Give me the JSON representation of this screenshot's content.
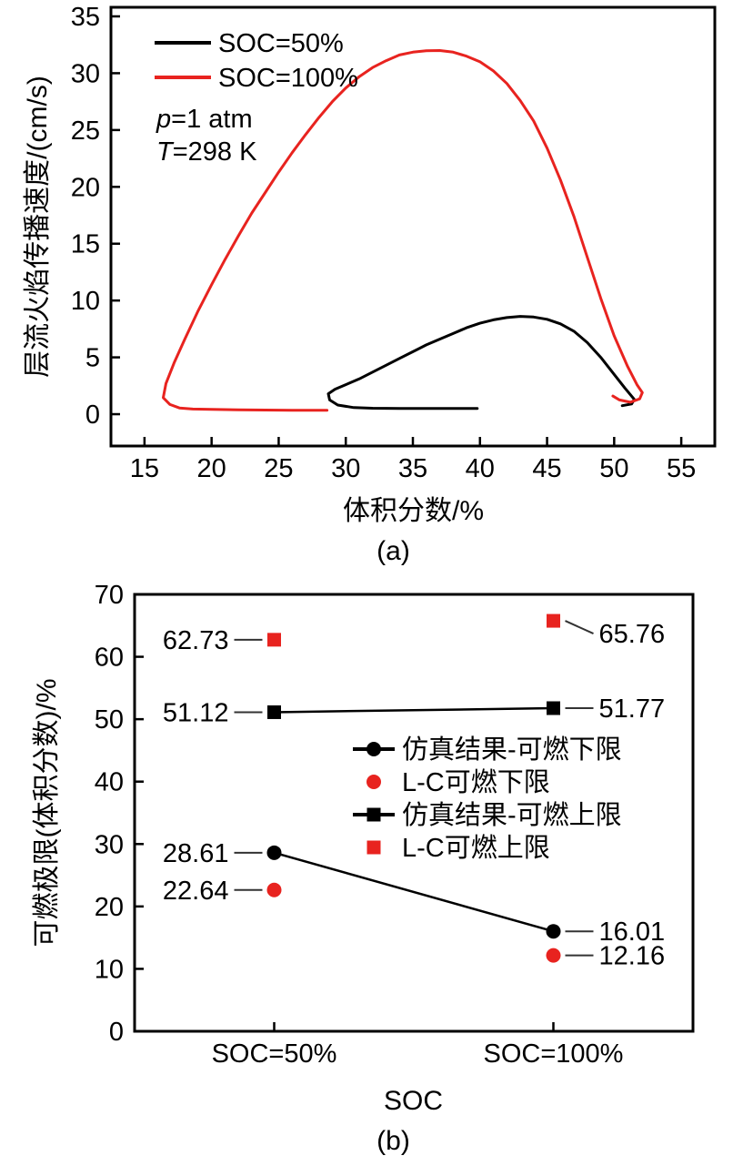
{
  "page": {
    "background": "#ffffff",
    "accent_red": "#e8231f",
    "accent_black": "#000000"
  },
  "chart_data": [
    {
      "id": "a",
      "type": "line",
      "title": "",
      "xlabel": "体积分数/%",
      "ylabel": "层流火焰传播速度/(cm/s)",
      "sublabel": "(a)",
      "xlim": [
        12.5,
        57.5
      ],
      "ylim": [
        -2.8,
        35.8
      ],
      "xticks": [
        15,
        20,
        25,
        30,
        35,
        40,
        45,
        50,
        55
      ],
      "yticks": [
        0,
        5,
        10,
        15,
        20,
        25,
        30,
        35
      ],
      "grid": false,
      "legend_position": "top-left",
      "legend": [
        {
          "label": "SOC=50%",
          "color": "#000000",
          "type": "line"
        },
        {
          "label": "SOC=100%",
          "color": "#e8231f",
          "type": "line"
        }
      ],
      "conditions": [
        {
          "italic": "p",
          "rest": "=1 atm"
        },
        {
          "italic": "T",
          "rest": "=298 K"
        }
      ],
      "series": [
        {
          "name": "SOC=50%",
          "color": "#000000",
          "points": [
            [
              39.8,
              0.5
            ],
            [
              38,
              0.5
            ],
            [
              36,
              0.5
            ],
            [
              34,
              0.5
            ],
            [
              32,
              0.52
            ],
            [
              30.6,
              0.58
            ],
            [
              29.4,
              0.8
            ],
            [
              28.8,
              1.25
            ],
            [
              28.7,
              1.8
            ],
            [
              29.2,
              2.2
            ],
            [
              30,
              2.6
            ],
            [
              31,
              3.1
            ],
            [
              32,
              3.7
            ],
            [
              33,
              4.3
            ],
            [
              34,
              4.9
            ],
            [
              35,
              5.5
            ],
            [
              36,
              6.1
            ],
            [
              37,
              6.6
            ],
            [
              38,
              7.1
            ],
            [
              39,
              7.6
            ],
            [
              40,
              8.0
            ],
            [
              41,
              8.3
            ],
            [
              42,
              8.5
            ],
            [
              43,
              8.6
            ],
            [
              44,
              8.55
            ],
            [
              45,
              8.35
            ],
            [
              46,
              7.95
            ],
            [
              47,
              7.3
            ],
            [
              48,
              6.3
            ],
            [
              49,
              5.0
            ],
            [
              50,
              3.5
            ],
            [
              50.8,
              2.3
            ],
            [
              51.5,
              1.3
            ],
            [
              51.3,
              0.9
            ],
            [
              50.6,
              0.75
            ]
          ]
        },
        {
          "name": "SOC=100%",
          "color": "#e8231f",
          "points": [
            [
              28.6,
              0.35
            ],
            [
              26,
              0.35
            ],
            [
              24,
              0.36
            ],
            [
              22,
              0.38
            ],
            [
              20,
              0.42
            ],
            [
              18.6,
              0.45
            ],
            [
              17.6,
              0.55
            ],
            [
              16.9,
              0.85
            ],
            [
              16.4,
              1.45
            ],
            [
              16.6,
              2.7
            ],
            [
              17.2,
              4.5
            ],
            [
              18,
              6.6
            ],
            [
              19,
              9.1
            ],
            [
              20,
              11.4
            ],
            [
              21,
              13.6
            ],
            [
              22,
              15.7
            ],
            [
              23,
              17.7
            ],
            [
              24,
              19.5
            ],
            [
              25,
              21.3
            ],
            [
              26,
              23.0
            ],
            [
              27,
              24.6
            ],
            [
              28,
              26.1
            ],
            [
              29,
              27.5
            ],
            [
              30,
              28.7
            ],
            [
              31,
              29.7
            ],
            [
              32,
              30.5
            ],
            [
              33,
              31.1
            ],
            [
              34,
              31.6
            ],
            [
              35,
              31.85
            ],
            [
              36,
              31.97
            ],
            [
              37,
              32.0
            ],
            [
              38,
              31.85
            ],
            [
              39,
              31.5
            ],
            [
              40,
              31.0
            ],
            [
              41,
              30.2
            ],
            [
              42,
              29.1
            ],
            [
              43,
              27.6
            ],
            [
              44,
              25.8
            ],
            [
              45,
              23.4
            ],
            [
              46,
              20.6
            ],
            [
              47,
              17.4
            ],
            [
              48,
              13.8
            ],
            [
              49,
              10.2
            ],
            [
              50,
              6.9
            ],
            [
              51,
              4.2
            ],
            [
              51.7,
              2.6
            ],
            [
              52.1,
              1.9
            ],
            [
              51.9,
              1.35
            ],
            [
              51.2,
              1.05
            ],
            [
              50.4,
              1.25
            ],
            [
              49.9,
              1.6
            ]
          ]
        }
      ]
    },
    {
      "id": "b",
      "type": "scatter",
      "title": "",
      "xlabel": "SOC",
      "ylabel": "可燃极限(体积分数)/%",
      "sublabel": "(b)",
      "categories": [
        "SOC=50%",
        "SOC=100%"
      ],
      "ylim": [
        0,
        70
      ],
      "yticks": [
        0,
        10,
        20,
        30,
        40,
        50,
        60,
        70
      ],
      "grid": false,
      "legend_position": "center",
      "series": [
        {
          "name": "仿真结果-可燃下限",
          "marker": "circle",
          "color": "#000000",
          "line": true,
          "values": [
            28.61,
            16.01
          ]
        },
        {
          "name": "L-C可燃下限",
          "marker": "circle",
          "color": "#e8231f",
          "line": false,
          "values": [
            22.64,
            12.16
          ]
        },
        {
          "name": "仿真结果-可燃上限",
          "marker": "square",
          "color": "#000000",
          "line": true,
          "values": [
            51.12,
            51.77
          ]
        },
        {
          "name": "L-C可燃上限",
          "marker": "square",
          "color": "#e8231f",
          "line": false,
          "values": [
            62.73,
            65.76
          ]
        }
      ],
      "point_labels": [
        {
          "text": "62.73",
          "series": 3,
          "point": 0,
          "side": "left",
          "dy": 0
        },
        {
          "text": "65.76",
          "series": 3,
          "point": 1,
          "side": "right",
          "dy": 14
        },
        {
          "text": "51.12",
          "series": 2,
          "point": 0,
          "side": "left",
          "dy": 0
        },
        {
          "text": "51.77",
          "series": 2,
          "point": 1,
          "side": "right",
          "dy": 0
        },
        {
          "text": "28.61",
          "series": 0,
          "point": 0,
          "side": "left",
          "dy": 0
        },
        {
          "text": "16.01",
          "series": 0,
          "point": 1,
          "side": "right",
          "dy": 0
        },
        {
          "text": "22.64",
          "series": 1,
          "point": 0,
          "side": "left",
          "dy": 0
        },
        {
          "text": "12.16",
          "series": 1,
          "point": 1,
          "side": "right",
          "dy": 0
        }
      ]
    }
  ]
}
